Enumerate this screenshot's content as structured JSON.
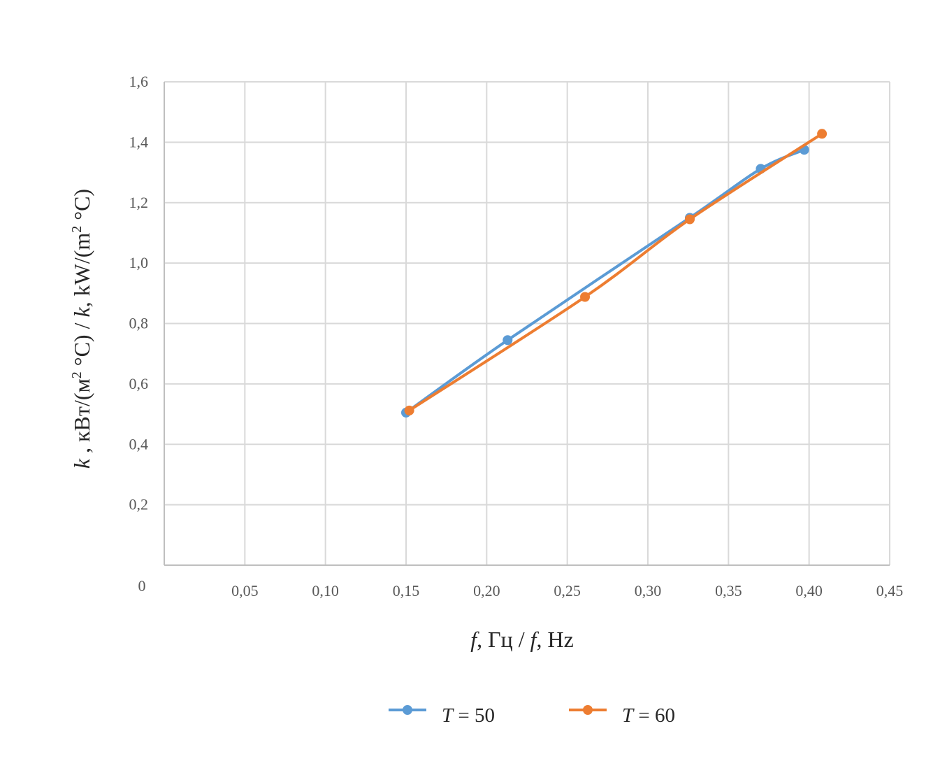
{
  "chart_data": {
    "type": "line",
    "xlabel": {
      "pre_var": "f",
      "pre_text": ", Гц / ",
      "post_var": "f",
      "post_text": ", Hz"
    },
    "ylabel": {
      "var1": "k",
      "mid": " , кВт/(м",
      "sup1": "2",
      "mid2": " °С) / ",
      "var2": "k",
      "mid3": ", kW/(m",
      "sup2": "2",
      "end": " °C)"
    },
    "xlim": [
      0,
      0.45
    ],
    "ylim": [
      0,
      1.6
    ],
    "x_ticks": [
      "0,05",
      "0,10",
      "0,15",
      "0,20",
      "0,25",
      "0,30",
      "0,35",
      "0,40",
      "0,45"
    ],
    "y_ticks": [
      "0,2",
      "0,4",
      "0,6",
      "0,8",
      "1,0",
      "1,2",
      "1,4",
      "1,6"
    ],
    "origin_label": "0",
    "grid": true,
    "legend_position": "bottom",
    "series": [
      {
        "name": "T = 50",
        "legend_var": "T",
        "legend_rest": " = 50",
        "color": "#5B9BD5",
        "points": [
          {
            "x": 0.15,
            "y": 0.505
          },
          {
            "x": 0.213,
            "y": 0.745
          },
          {
            "x": 0.326,
            "y": 1.15
          },
          {
            "x": 0.37,
            "y": 1.312
          },
          {
            "x": 0.397,
            "y": 1.375
          }
        ]
      },
      {
        "name": "T = 60",
        "legend_var": "T",
        "legend_rest": " = 60",
        "color": "#ED7D31",
        "points": [
          {
            "x": 0.152,
            "y": 0.512
          },
          {
            "x": 0.261,
            "y": 0.888
          },
          {
            "x": 0.326,
            "y": 1.145
          },
          {
            "x": 0.408,
            "y": 1.428
          }
        ]
      }
    ]
  }
}
